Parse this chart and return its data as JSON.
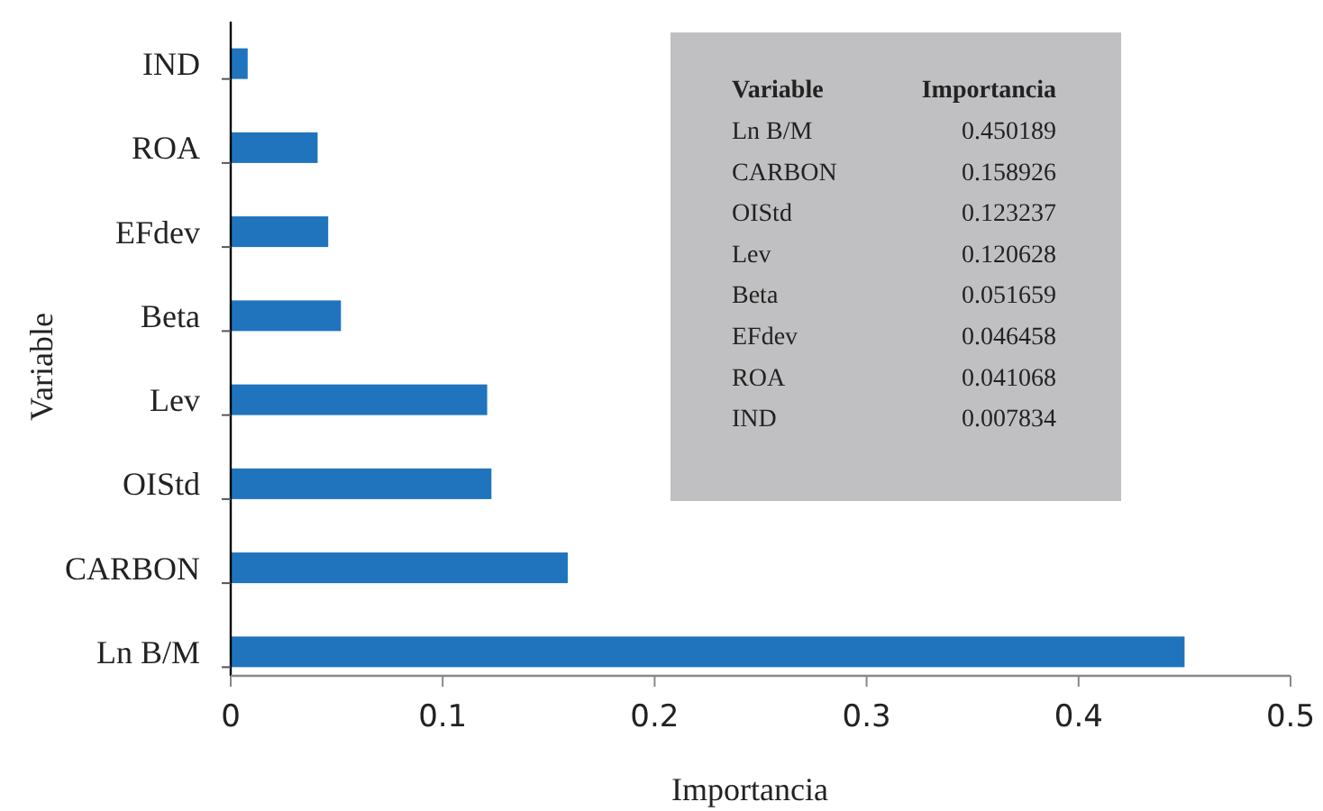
{
  "chart_data": [
    {
      "type": "bar",
      "orientation": "horizontal",
      "xlabel": "Importancia",
      "ylabel": "Variable",
      "categories": [
        "IND",
        "ROA",
        "EFdev",
        "Beta",
        "Lev",
        "OIStd",
        "CARBON",
        "Ln B/M"
      ],
      "values": [
        0.008,
        0.041,
        0.046,
        0.052,
        0.121,
        0.123,
        0.159,
        0.45
      ],
      "color": "#1f74bd",
      "xlim": [
        0,
        0.5
      ],
      "xticks": [
        0,
        0.1,
        0.2,
        0.3,
        0.4,
        0.5
      ]
    },
    {
      "type": "other",
      "annotations": [
        "Variable",
        "Importancia"
      ],
      "categories": [
        "Ln B/M",
        "CARBON",
        "OIStd",
        "Lev",
        "Beta",
        "EFdev",
        "ROA",
        "IND"
      ],
      "values": [
        0.450189,
        0.158926,
        0.123237,
        0.120628,
        0.051659,
        0.046458,
        0.041068,
        0.007834
      ],
      "data_labels": true
    }
  ]
}
